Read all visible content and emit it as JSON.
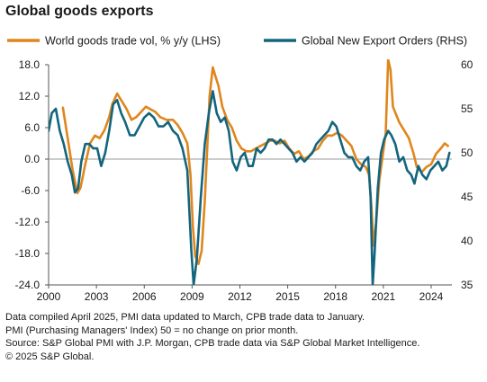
{
  "title": "Global goods exports",
  "notes": [
    "Data compiled April 2025, PMI data updated to March, CPB trade data to January.",
    "PMI (Purchasing Managers' Index) 50 = no change on prior month.",
    "Source: S&P Global PMI with J.P. Morgan, CPB trade data via S&P Global Market Intelligence.",
    "© 2025 S&P Global."
  ],
  "colors": {
    "trade": "#e0861c",
    "pmi": "#13657e",
    "zero": "#9a9a9a",
    "axis": "#555555"
  },
  "chart_data": {
    "type": "line",
    "x_ticks": [
      "2000",
      "2003",
      "2006",
      "2009",
      "2012",
      "2015",
      "2018",
      "2021",
      "2024"
    ],
    "xlim": [
      2000,
      2025.3
    ],
    "left_axis": {
      "ylim": [
        -24,
        18
      ],
      "ticks": [
        "18.0",
        "12.0",
        "6.0",
        "0.0",
        "-6.0",
        "-12.0",
        "-18.0",
        "-24.0"
      ]
    },
    "right_axis": {
      "ylim": [
        35,
        60
      ],
      "ticks": [
        "60",
        "55",
        "50",
        "45",
        "40",
        "35"
      ]
    },
    "series": [
      {
        "name": "World goods trade vol, % y/y (LHS)",
        "axis": "left",
        "points": [
          [
            2000.9,
            9.8
          ],
          [
            2001.2,
            4.0
          ],
          [
            2001.5,
            -2.0
          ],
          [
            2001.8,
            -6.5
          ],
          [
            2002.0,
            -5.5
          ],
          [
            2002.3,
            -1.0
          ],
          [
            2002.6,
            3.0
          ],
          [
            2002.9,
            4.5
          ],
          [
            2003.2,
            4.0
          ],
          [
            2003.5,
            5.5
          ],
          [
            2003.8,
            8.0
          ],
          [
            2004.0,
            10.5
          ],
          [
            2004.3,
            12.5
          ],
          [
            2004.6,
            11.0
          ],
          [
            2004.9,
            9.5
          ],
          [
            2005.2,
            7.5
          ],
          [
            2005.5,
            8.0
          ],
          [
            2005.8,
            9.0
          ],
          [
            2006.1,
            10.0
          ],
          [
            2006.4,
            9.5
          ],
          [
            2006.7,
            9.0
          ],
          [
            2007.0,
            8.0
          ],
          [
            2007.4,
            7.5
          ],
          [
            2007.8,
            7.5
          ],
          [
            2008.1,
            6.5
          ],
          [
            2008.4,
            5.0
          ],
          [
            2008.7,
            3.0
          ],
          [
            2008.9,
            -3.0
          ],
          [
            2009.05,
            -13.0
          ],
          [
            2009.2,
            -18.5
          ],
          [
            2009.4,
            -20.0
          ],
          [
            2009.6,
            -17.5
          ],
          [
            2009.8,
            -8.0
          ],
          [
            2009.95,
            2.0
          ],
          [
            2010.1,
            12.0
          ],
          [
            2010.3,
            17.5
          ],
          [
            2010.45,
            16.0
          ],
          [
            2010.65,
            14.0
          ],
          [
            2010.9,
            10.0
          ],
          [
            2011.2,
            7.5
          ],
          [
            2011.5,
            6.0
          ],
          [
            2011.8,
            3.5
          ],
          [
            2012.1,
            2.0
          ],
          [
            2012.4,
            1.5
          ],
          [
            2012.7,
            1.5
          ],
          [
            2013.0,
            2.0
          ],
          [
            2013.3,
            2.5
          ],
          [
            2013.6,
            3.0
          ],
          [
            2013.9,
            3.5
          ],
          [
            2014.2,
            3.5
          ],
          [
            2014.5,
            3.0
          ],
          [
            2014.8,
            3.5
          ],
          [
            2015.1,
            2.0
          ],
          [
            2015.4,
            1.0
          ],
          [
            2015.7,
            1.5
          ],
          [
            2016.0,
            0.0
          ],
          [
            2016.3,
            0.5
          ],
          [
            2016.6,
            1.5
          ],
          [
            2016.9,
            2.0
          ],
          [
            2017.2,
            3.5
          ],
          [
            2017.5,
            4.5
          ],
          [
            2017.8,
            4.5
          ],
          [
            2018.1,
            5.0
          ],
          [
            2018.4,
            4.5
          ],
          [
            2018.7,
            3.5
          ],
          [
            2019.0,
            2.5
          ],
          [
            2019.3,
            0.0
          ],
          [
            2019.6,
            -1.0
          ],
          [
            2019.9,
            -1.5
          ],
          [
            2020.1,
            -3.0
          ],
          [
            2020.25,
            -9.0
          ],
          [
            2020.38,
            -16.5
          ],
          [
            2020.55,
            -12.0
          ],
          [
            2020.75,
            -4.0
          ],
          [
            2020.95,
            0.5
          ],
          [
            2021.15,
            5.0
          ],
          [
            2021.3,
            19.0
          ],
          [
            2021.45,
            17.0
          ],
          [
            2021.6,
            10.0
          ],
          [
            2021.8,
            8.5
          ],
          [
            2022.0,
            7.0
          ],
          [
            2022.3,
            5.5
          ],
          [
            2022.6,
            4.0
          ],
          [
            2022.9,
            1.0
          ],
          [
            2023.1,
            -1.5
          ],
          [
            2023.4,
            -2.5
          ],
          [
            2023.7,
            -1.5
          ],
          [
            2024.0,
            -1.0
          ],
          [
            2024.3,
            1.0
          ],
          [
            2024.6,
            2.0
          ],
          [
            2024.85,
            3.0
          ],
          [
            2025.05,
            2.5
          ]
        ]
      },
      {
        "name": "Global New Export Orders (RHS)",
        "axis": "right",
        "points": [
          [
            2000.0,
            52.5
          ],
          [
            2000.2,
            54.5
          ],
          [
            2000.45,
            55.0
          ],
          [
            2000.7,
            52.5
          ],
          [
            2000.95,
            51.0
          ],
          [
            2001.2,
            49.0
          ],
          [
            2001.45,
            47.5
          ],
          [
            2001.65,
            45.5
          ],
          [
            2001.85,
            46.0
          ],
          [
            2002.05,
            49.0
          ],
          [
            2002.3,
            51.0
          ],
          [
            2002.55,
            51.0
          ],
          [
            2002.8,
            50.5
          ],
          [
            2003.05,
            50.5
          ],
          [
            2003.3,
            48.5
          ],
          [
            2003.55,
            50.0
          ],
          [
            2003.8,
            52.5
          ],
          [
            2004.05,
            55.5
          ],
          [
            2004.3,
            56.0
          ],
          [
            2004.55,
            54.5
          ],
          [
            2004.8,
            53.5
          ],
          [
            2005.1,
            52.0
          ],
          [
            2005.4,
            52.0
          ],
          [
            2005.7,
            53.0
          ],
          [
            2006.0,
            54.0
          ],
          [
            2006.3,
            54.5
          ],
          [
            2006.6,
            54.0
          ],
          [
            2006.9,
            53.0
          ],
          [
            2007.2,
            53.0
          ],
          [
            2007.5,
            53.5
          ],
          [
            2007.8,
            52.5
          ],
          [
            2008.1,
            52.0
          ],
          [
            2008.4,
            50.5
          ],
          [
            2008.7,
            48.0
          ],
          [
            2008.95,
            39.0
          ],
          [
            2009.1,
            35.0
          ],
          [
            2009.3,
            38.0
          ],
          [
            2009.55,
            45.0
          ],
          [
            2009.8,
            51.0
          ],
          [
            2010.05,
            54.5
          ],
          [
            2010.3,
            57.0
          ],
          [
            2010.55,
            54.5
          ],
          [
            2010.8,
            53.5
          ],
          [
            2011.05,
            54.0
          ],
          [
            2011.3,
            52.5
          ],
          [
            2011.55,
            49.0
          ],
          [
            2011.8,
            48.0
          ],
          [
            2012.05,
            49.5
          ],
          [
            2012.3,
            50.0
          ],
          [
            2012.55,
            48.5
          ],
          [
            2012.8,
            48.5
          ],
          [
            2013.05,
            50.5
          ],
          [
            2013.3,
            50.0
          ],
          [
            2013.55,
            50.5
          ],
          [
            2013.8,
            51.5
          ],
          [
            2014.05,
            51.5
          ],
          [
            2014.3,
            51.0
          ],
          [
            2014.55,
            51.5
          ],
          [
            2014.8,
            51.0
          ],
          [
            2015.05,
            50.5
          ],
          [
            2015.3,
            50.0
          ],
          [
            2015.55,
            49.0
          ],
          [
            2015.8,
            49.5
          ],
          [
            2016.05,
            49.0
          ],
          [
            2016.3,
            49.5
          ],
          [
            2016.55,
            50.0
          ],
          [
            2016.8,
            51.0
          ],
          [
            2017.05,
            51.5
          ],
          [
            2017.3,
            52.0
          ],
          [
            2017.55,
            52.5
          ],
          [
            2017.8,
            53.5
          ],
          [
            2018.05,
            53.0
          ],
          [
            2018.3,
            51.5
          ],
          [
            2018.55,
            50.0
          ],
          [
            2018.8,
            49.5
          ],
          [
            2019.05,
            49.5
          ],
          [
            2019.3,
            48.5
          ],
          [
            2019.55,
            48.0
          ],
          [
            2019.8,
            49.0
          ],
          [
            2020.05,
            49.5
          ],
          [
            2020.2,
            45.0
          ],
          [
            2020.33,
            35.0
          ],
          [
            2020.45,
            38.5
          ],
          [
            2020.65,
            46.0
          ],
          [
            2020.85,
            50.0
          ],
          [
            2021.05,
            51.5
          ],
          [
            2021.3,
            52.5
          ],
          [
            2021.5,
            52.0
          ],
          [
            2021.75,
            51.0
          ],
          [
            2022.0,
            49.0
          ],
          [
            2022.25,
            49.5
          ],
          [
            2022.5,
            48.0
          ],
          [
            2022.75,
            47.5
          ],
          [
            2022.95,
            46.5
          ],
          [
            2023.2,
            48.5
          ],
          [
            2023.45,
            47.5
          ],
          [
            2023.7,
            47.0
          ],
          [
            2023.95,
            48.0
          ],
          [
            2024.2,
            48.5
          ],
          [
            2024.45,
            49.0
          ],
          [
            2024.7,
            48.0
          ],
          [
            2024.95,
            48.5
          ],
          [
            2025.15,
            50.0
          ]
        ]
      }
    ]
  }
}
